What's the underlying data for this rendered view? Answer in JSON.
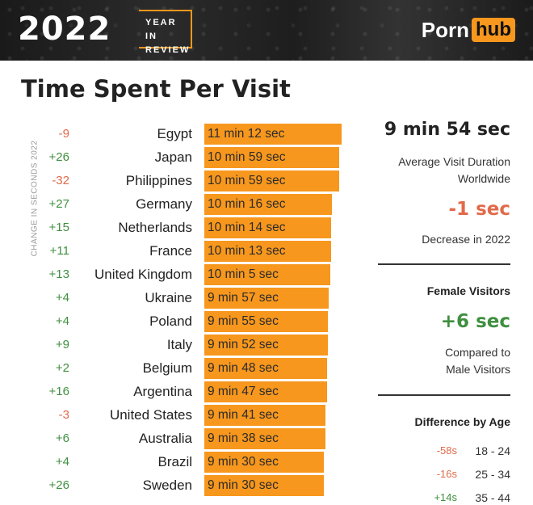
{
  "banner": {
    "year": "2022",
    "year_in_review_line1": "YEAR IN",
    "year_in_review_line2": "REVIEW",
    "logo_part1": "Porn",
    "logo_part2": "hub"
  },
  "title": "Time Spent Per Visit",
  "side_label": "CHANGE IN SECONDS 2022",
  "chart_data": {
    "type": "bar",
    "orientation": "horizontal",
    "title": "Time Spent Per Visit",
    "categories": [
      "Egypt",
      "Japan",
      "Philippines",
      "Germany",
      "Netherlands",
      "France",
      "United Kingdom",
      "Ukraine",
      "Poland",
      "Italy",
      "Belgium",
      "Argentina",
      "United States",
      "Australia",
      "Brazil",
      "Sweden"
    ],
    "values_seconds": [
      672,
      659,
      659,
      616,
      614,
      613,
      605,
      597,
      595,
      592,
      588,
      587,
      581,
      578,
      570,
      570
    ],
    "value_labels": [
      "11 min 12 sec",
      "10 min 59 sec",
      "10 min 59 sec",
      "10 min 16 sec",
      "10 min 14 sec",
      "10 min 13 sec",
      "10 min 5 sec",
      "9 min 57 sec",
      "9 min 55 sec",
      "9 min 52 sec",
      "9 min 48 sec",
      "9 min 47 sec",
      "9 min 41 sec",
      "9 min 38 sec",
      "9 min 30 sec",
      "9 min 30 sec"
    ],
    "change_labels": [
      "-9",
      "+26",
      "-32",
      "+27",
      "+15",
      "+11",
      "+13",
      "+4",
      "+4",
      "+9",
      "+2",
      "+16",
      "-3",
      "+6",
      "+4",
      "+26"
    ],
    "change_seconds": [
      -9,
      26,
      -32,
      27,
      15,
      11,
      13,
      4,
      4,
      9,
      2,
      16,
      -3,
      6,
      4,
      26
    ],
    "colors": {
      "bar": "#f7971d",
      "positive": "#3f8f3f",
      "negative": "#e06a4a"
    }
  },
  "stats": {
    "avg_duration": "9 min 54 sec",
    "avg_label_line1": "Average Visit Duration",
    "avg_label_line2": "Worldwide",
    "avg_change": "-1 sec",
    "avg_change_label": "Decrease in 2022",
    "female_heading": "Female Visitors",
    "female_change": "+6 sec",
    "female_label_line1": "Compared to",
    "female_label_line2": "Male Visitors",
    "age_heading": "Difference by Age",
    "age_rows": [
      {
        "diff": "-58s",
        "range": "18 - 24",
        "sign": "neg"
      },
      {
        "diff": "-16s",
        "range": "25 - 34",
        "sign": "neg"
      },
      {
        "diff": "+14s",
        "range": "35 - 44",
        "sign": "pos"
      }
    ]
  }
}
